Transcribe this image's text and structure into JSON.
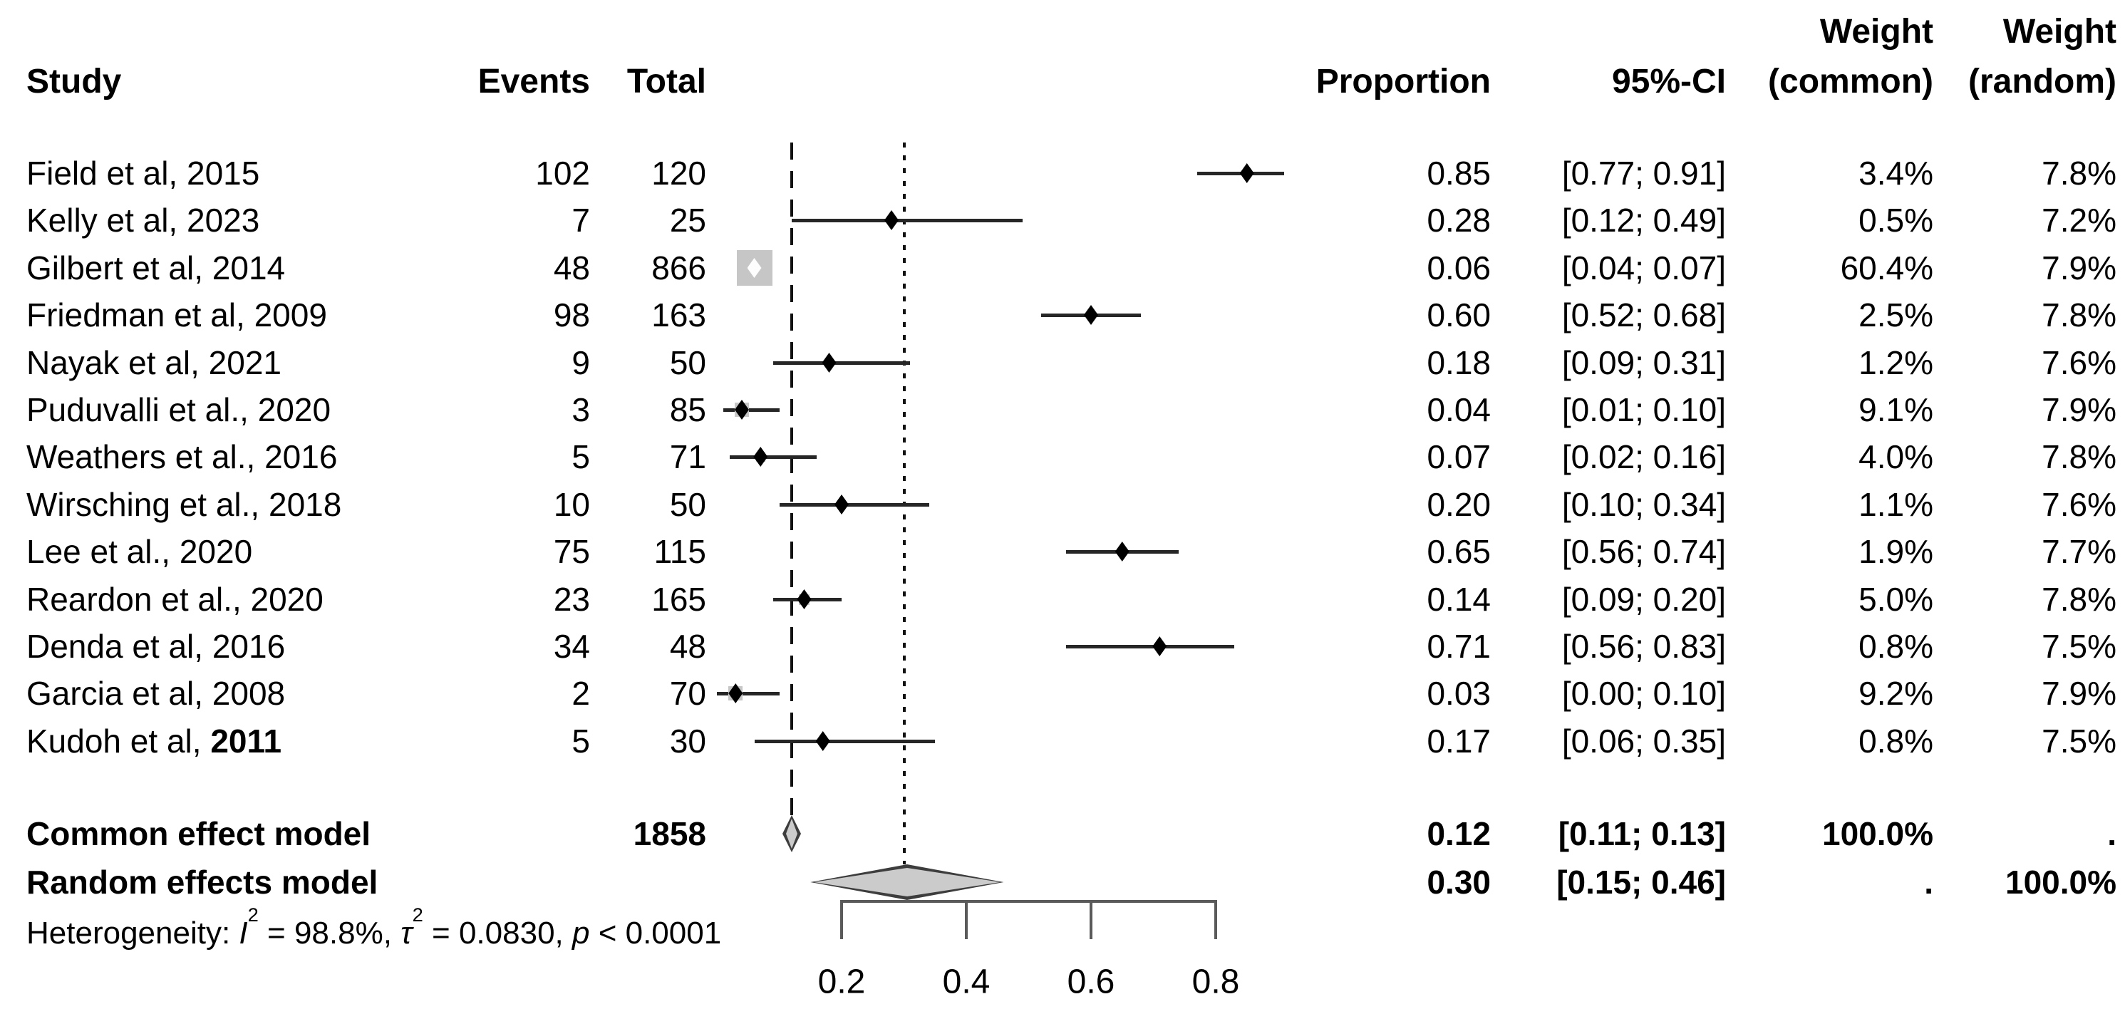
{
  "header": {
    "study": "Study",
    "events": "Events",
    "total": "Total",
    "proportion": "Proportion",
    "ci": "95%-CI",
    "weight_top": "Weight",
    "weight_common": "(common)",
    "weight_random": "(random)"
  },
  "chart_data": {
    "type": "forest",
    "x_axis_range": [
      0,
      1
    ],
    "tick_values": [
      0.2,
      0.4,
      0.6,
      0.8
    ],
    "tick_labels": [
      "0.2",
      "0.4",
      "0.6",
      "0.8"
    ],
    "grid": false,
    "studies": [
      {
        "label": "Field et al, 2015",
        "events": "102",
        "total": "120",
        "proportion": "0.85",
        "ci": "[0.77; 0.91]",
        "p": 0.85,
        "ci_low": 0.77,
        "ci_high": 0.91,
        "wc": 3.4,
        "weight_common": "3.4%",
        "weight_random": "7.8%"
      },
      {
        "label": "Kelly et al, 2023",
        "events": "7",
        "total": "25",
        "proportion": "0.28",
        "ci": "[0.12; 0.49]",
        "p": 0.28,
        "ci_low": 0.12,
        "ci_high": 0.49,
        "wc": 0.5,
        "weight_common": "0.5%",
        "weight_random": "7.2%"
      },
      {
        "label": "Gilbert et al, 2014",
        "events": "48",
        "total": "866",
        "proportion": "0.06",
        "ci": "[0.04; 0.07]",
        "p": 0.06,
        "ci_low": 0.04,
        "ci_high": 0.07,
        "wc": 60.4,
        "weight_common": "60.4%",
        "weight_random": "7.9%"
      },
      {
        "label": "Friedman et al, 2009",
        "events": "98",
        "total": "163",
        "proportion": "0.60",
        "ci": "[0.52; 0.68]",
        "p": 0.6,
        "ci_low": 0.52,
        "ci_high": 0.68,
        "wc": 2.5,
        "weight_common": "2.5%",
        "weight_random": "7.8%"
      },
      {
        "label": "Nayak et al, 2021",
        "events": "9",
        "total": "50",
        "proportion": "0.18",
        "ci": "[0.09; 0.31]",
        "p": 0.18,
        "ci_low": 0.09,
        "ci_high": 0.31,
        "wc": 1.2,
        "weight_common": "1.2%",
        "weight_random": "7.6%"
      },
      {
        "label": "Puduvalli et al., 2020",
        "events": "3",
        "total": "85",
        "proportion": "0.04",
        "ci": "[0.01; 0.10]",
        "p": 0.04,
        "ci_low": 0.01,
        "ci_high": 0.1,
        "wc": 9.1,
        "weight_common": "9.1%",
        "weight_random": "7.9%"
      },
      {
        "label": "Weathers et al., 2016",
        "events": "5",
        "total": "71",
        "proportion": "0.07",
        "ci": "[0.02; 0.16]",
        "p": 0.07,
        "ci_low": 0.02,
        "ci_high": 0.16,
        "wc": 4.0,
        "weight_common": "4.0%",
        "weight_random": "7.8%"
      },
      {
        "label": "Wirsching et al., 2018",
        "events": "10",
        "total": "50",
        "proportion": "0.20",
        "ci": "[0.10; 0.34]",
        "p": 0.2,
        "ci_low": 0.1,
        "ci_high": 0.34,
        "wc": 1.1,
        "weight_common": "1.1%",
        "weight_random": "7.6%"
      },
      {
        "label": "Lee et al., 2020",
        "events": "75",
        "total": "115",
        "proportion": "0.65",
        "ci": "[0.56; 0.74]",
        "p": 0.65,
        "ci_low": 0.56,
        "ci_high": 0.74,
        "wc": 1.9,
        "weight_common": "1.9%",
        "weight_random": "7.7%"
      },
      {
        "label": "Reardon et al., 2020",
        "events": "23",
        "total": "165",
        "proportion": "0.14",
        "ci": "[0.09; 0.20]",
        "p": 0.14,
        "ci_low": 0.09,
        "ci_high": 0.2,
        "wc": 5.0,
        "weight_common": "5.0%",
        "weight_random": "7.8%"
      },
      {
        "label": "Denda et al, 2016",
        "events": "34",
        "total": "48",
        "proportion": "0.71",
        "ci": "[0.56; 0.83]",
        "p": 0.71,
        "ci_low": 0.56,
        "ci_high": 0.83,
        "wc": 0.8,
        "weight_common": "0.8%",
        "weight_random": "7.5%"
      },
      {
        "label": "Garcia et al, 2008",
        "events": "2",
        "total": "70",
        "proportion": "0.03",
        "ci": "[0.00; 0.10]",
        "p": 0.03,
        "ci_low": 0.0,
        "ci_high": 0.1,
        "wc": 9.2,
        "weight_common": "9.2%",
        "weight_random": "7.9%"
      },
      {
        "label": "Kudoh et al, ",
        "label_bold": "2011",
        "events": "5",
        "total": "30",
        "proportion": "0.17",
        "ci": "[0.06; 0.35]",
        "p": 0.17,
        "ci_low": 0.06,
        "ci_high": 0.35,
        "wc": 0.8,
        "weight_common": "0.8%",
        "weight_random": "7.5%"
      }
    ],
    "common_effect": {
      "label": "Common effect model",
      "total": "1858",
      "proportion": "0.12",
      "ci": "[0.11; 0.13]",
      "p": 0.12,
      "ci_low": 0.11,
      "ci_high": 0.13,
      "weight_common": "100.0%",
      "weight_random": "."
    },
    "random_effects": {
      "label": "Random effects model",
      "proportion": "0.30",
      "ci": "[0.15; 0.46]",
      "p": 0.3,
      "ci_low": 0.15,
      "ci_high": 0.46,
      "weight_common": ".",
      "weight_random": "100.0%"
    },
    "heterogeneity_parts": [
      {
        "text": "Heterogeneity: "
      },
      {
        "text": "I",
        "italic": true
      },
      {
        "text": "2",
        "sup": true
      },
      {
        "text": " = 98.8%, "
      },
      {
        "text": "τ",
        "italic": true
      },
      {
        "text": "2",
        "sup": true
      },
      {
        "text": " = 0.0830, "
      },
      {
        "text": "p",
        "italic": true
      },
      {
        "text": " < 0.0001"
      }
    ],
    "heterogeneity_text": "Heterogeneity: I² = 98.8%, τ² = 0.0830, p < 0.0001",
    "colors": {
      "square_fill": "#c6c6c6",
      "diamond_fill": "#cbcbcb",
      "diamond_border": "#3d3d3d",
      "line": "#262626",
      "axis": "#5a5a5a",
      "text": "#000000"
    }
  }
}
